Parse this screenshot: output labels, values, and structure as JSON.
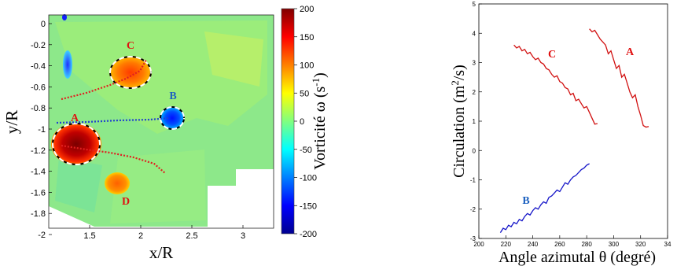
{
  "colors": {
    "A": "#e01010",
    "B": "#1e62c0",
    "C": "#e01010",
    "D": "#e01010",
    "curve_red": "#d11111",
    "curve_blue": "#1414c8"
  },
  "chart_data": [
    {
      "type": "heatmap",
      "xlabel": "x/R",
      "ylabel": "y/R",
      "x_ticks": [
        "1.5",
        "2",
        "2.5",
        "3"
      ],
      "y_ticks": [
        "0",
        "-0.2",
        "-0.4",
        "-0.6",
        "-0.8",
        "-1",
        "-1.2",
        "-1.4",
        "-1.6",
        "-1.8",
        "-2"
      ],
      "xlim": [
        1.1,
        3.3
      ],
      "ylim": [
        -2.0,
        0.05
      ],
      "colorbar": {
        "label": "Vorticité ω (s",
        "label_sup": "-1",
        "label_tail": ")",
        "ticks": [
          "200",
          "150",
          "100",
          "50",
          "0",
          "-50",
          "-100",
          "-150",
          "-200"
        ],
        "range": [
          -200,
          200
        ]
      },
      "vortices": [
        {
          "name": "A",
          "x": 1.42,
          "y": -1.17,
          "sign": "positive"
        },
        {
          "name": "B",
          "x": 2.32,
          "y": -0.92,
          "sign": "negative"
        },
        {
          "name": "C",
          "x": 1.92,
          "y": -0.43,
          "sign": "positive"
        },
        {
          "name": "D",
          "x": 1.82,
          "y": -1.58,
          "sign": "positive"
        }
      ],
      "labels": {
        "A": "A",
        "B": "B",
        "C": "C",
        "D": "D"
      }
    },
    {
      "type": "line",
      "xlabel": "Angle azimutal θ (degré)",
      "ylabel": "Circulation (m",
      "ylabel_sup": "2",
      "ylabel_tail": "/s)",
      "xlim": [
        200,
        340
      ],
      "ylim": [
        -3,
        5
      ],
      "x_ticks": [
        "200",
        "220",
        "240",
        "260",
        "280",
        "300",
        "320",
        "34"
      ],
      "y_ticks": [
        "5",
        "4",
        "3",
        "2",
        "1",
        "0",
        "-1",
        "-2",
        "-3"
      ],
      "series": [
        {
          "name": "A",
          "x": [
            282,
            284,
            286,
            288,
            290,
            292,
            294,
            296,
            298,
            300,
            302,
            304,
            306,
            308,
            310,
            312,
            314,
            316,
            318,
            320,
            322,
            324,
            326
          ],
          "values": [
            4.15,
            4.05,
            4.1,
            3.95,
            3.8,
            3.7,
            3.6,
            3.3,
            3.4,
            3.1,
            2.8,
            2.9,
            2.5,
            2.6,
            2.3,
            2.0,
            1.8,
            1.9,
            1.5,
            1.2,
            0.85,
            0.8,
            0.82
          ]
        },
        {
          "name": "B",
          "x": [
            216,
            218,
            220,
            222,
            224,
            226,
            228,
            230,
            232,
            234,
            236,
            238,
            240,
            242,
            244,
            246,
            248,
            250,
            252,
            254,
            256,
            258,
            260,
            262,
            264,
            266,
            268,
            270,
            272,
            274,
            276,
            278,
            280,
            282
          ],
          "values": [
            -2.8,
            -2.65,
            -2.7,
            -2.55,
            -2.6,
            -2.45,
            -2.5,
            -2.35,
            -2.4,
            -2.25,
            -2.15,
            -2.2,
            -2.05,
            -1.95,
            -2.0,
            -1.85,
            -1.75,
            -1.8,
            -1.6,
            -1.55,
            -1.45,
            -1.35,
            -1.4,
            -1.25,
            -1.1,
            -1.15,
            -1.0,
            -0.9,
            -0.85,
            -0.75,
            -0.65,
            -0.6,
            -0.5,
            -0.45
          ]
        },
        {
          "name": "C",
          "x": [
            226,
            228,
            230,
            232,
            234,
            236,
            238,
            240,
            242,
            244,
            246,
            248,
            250,
            252,
            254,
            256,
            258,
            260,
            262,
            264,
            266,
            268,
            270,
            272,
            274,
            276,
            278,
            280,
            282,
            284,
            286,
            288
          ],
          "values": [
            3.6,
            3.5,
            3.55,
            3.4,
            3.45,
            3.3,
            3.35,
            3.2,
            3.1,
            3.15,
            3.0,
            2.95,
            2.8,
            2.75,
            2.6,
            2.5,
            2.55,
            2.35,
            2.3,
            2.15,
            2.1,
            1.9,
            1.95,
            1.7,
            1.75,
            1.6,
            1.45,
            1.5,
            1.3,
            1.1,
            0.9,
            0.92
          ]
        }
      ],
      "labels": {
        "A": "A",
        "B": "B",
        "C": "C"
      }
    }
  ]
}
